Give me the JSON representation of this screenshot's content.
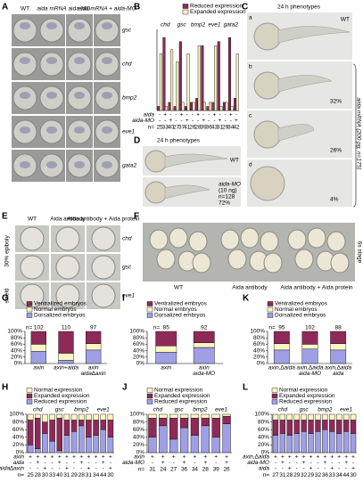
{
  "panel_letters": [
    "A",
    "B",
    "C",
    "D",
    "E",
    "F",
    "G",
    "H",
    "I",
    "J",
    "K",
    "L"
  ],
  "panel_a": {
    "columns": [
      "WT",
      "aida mRNA",
      "aida-MO",
      "aida mRNA + aida-MO"
    ],
    "rows": [
      "gsc",
      "chd",
      "bmp2",
      "eve1",
      "gata2"
    ]
  },
  "panel_c": {
    "title": "24 h phenotypes",
    "wt": "WT",
    "sub": [
      "a",
      "b",
      "c",
      "d"
    ],
    "percents": [
      "32%",
      "26%",
      "4%"
    ],
    "side": "aida mRNA (200 pg, n=175)"
  },
  "panel_d": {
    "title": "24 h phenotypes",
    "wt": "WT",
    "lines": [
      "aida-MO",
      "(10 ng)",
      "n=128",
      "72%"
    ]
  },
  "panel_e": {
    "columns": [
      "WT",
      "Aida antibody",
      "Aida antibody + Aida protein"
    ],
    "rows": [
      "chd",
      "gsc",
      "eve1"
    ],
    "stages": [
      "30% epiboly",
      "shield"
    ]
  },
  "panel_f": {
    "labels": [
      "WT",
      "Aida antibody",
      "Aida antibody + Aida protein"
    ],
    "stage": "6s stage"
  },
  "chart_data": [
    {
      "type": "grouped_bar",
      "ylim": [
        0,
        100
      ],
      "groups": [
        "chd",
        "gsc",
        "bmp2",
        "eve1",
        "gata2"
      ],
      "series": [
        {
          "name": "Reduced expression",
          "color": "#8e2a5a",
          "values": [
            5,
            90,
            10,
            5,
            85,
            5,
            10,
            15,
            80,
            5,
            10,
            85,
            10,
            90,
            15
          ]
        },
        {
          "name": "Expanded expression",
          "color": "#fdf6c3",
          "values": [
            70,
            5,
            75,
            60,
            10,
            70,
            10,
            80,
            10,
            10,
            80,
            5,
            10,
            5,
            70
          ]
        }
      ],
      "conditions": [
        {
          "name": "aida",
          "marks": [
            "-",
            "+",
            "-",
            "-",
            "+",
            "-",
            "-",
            "+",
            "-",
            "-",
            "+",
            "-",
            "-",
            "+",
            "-"
          ]
        },
        {
          "name": "aida-MO",
          "marks": [
            "-",
            "-",
            "+",
            "-",
            "-",
            "+",
            "-",
            "-",
            "+",
            "-",
            "-",
            "+",
            "-",
            "-",
            "+"
          ]
        }
      ],
      "n_label": "n=",
      "n": [
        25,
        33,
        40,
        27,
        37,
        41,
        26,
        28,
        39,
        36,
        43,
        31,
        29,
        34,
        42
      ]
    },
    {
      "type": "stacked_bar",
      "categories": [
        [
          "axin"
        ],
        [
          "axin+aida"
        ],
        [
          "axin",
          "aida∆axin"
        ]
      ],
      "ylim": [
        0,
        100
      ],
      "yticks": [
        {
          "value": 0,
          "label": "0%"
        },
        {
          "value": 20,
          "label": "20%"
        },
        {
          "value": 40,
          "label": "40%"
        },
        {
          "value": 60,
          "label": "60%"
        },
        {
          "value": 80,
          "label": "80%"
        },
        {
          "value": 100,
          "label": "100%"
        }
      ],
      "series": [
        {
          "name": "Dorsalized embryos",
          "color": "#9f9fe6",
          "values": [
            38,
            10,
            42
          ]
        },
        {
          "name": "Normal embryos",
          "color": "#fdf6c3",
          "values": [
            22,
            22,
            20
          ]
        },
        {
          "name": "Ventralized embryos",
          "color": "#8e2a5a",
          "values": [
            40,
            68,
            38
          ]
        }
      ],
      "n_label": "n=",
      "n": [
        102,
        110,
        97
      ]
    },
    {
      "type": "stacked_bar",
      "groups": [
        "chd",
        "gsc",
        "bmp2",
        "eve1"
      ],
      "ylim": [
        0,
        100
      ],
      "yticks": [
        {
          "value": 0,
          "label": "0%"
        },
        {
          "value": 20,
          "label": "20%"
        },
        {
          "value": 40,
          "label": "40%"
        },
        {
          "value": 60,
          "label": "60%"
        },
        {
          "value": 80,
          "label": "80%"
        },
        {
          "value": 100,
          "label": "100%"
        }
      ],
      "series": [
        {
          "name": "Reduced expression",
          "color": "#9f9fe6",
          "values": [
            20,
            10,
            50,
            30,
            5,
            45,
            55,
            70,
            40,
            45,
            60,
            40
          ]
        },
        {
          "name": "Expanded expression",
          "color": "#8e2a5a",
          "values": [
            65,
            80,
            30,
            55,
            85,
            40,
            30,
            15,
            45,
            40,
            25,
            45
          ]
        },
        {
          "name": "Normal expression",
          "color": "#fdf6c3",
          "values": [
            15,
            10,
            20,
            15,
            10,
            15,
            15,
            15,
            15,
            15,
            15,
            15
          ]
        }
      ],
      "conditions": [
        {
          "name": "axin",
          "marks": [
            "+",
            "+",
            "+",
            "+",
            "+",
            "+",
            "+",
            "+",
            "+",
            "+",
            "+",
            "+"
          ]
        },
        {
          "name": "aida",
          "marks": [
            "-",
            "+",
            "-",
            "-",
            "+",
            "-",
            "-",
            "+",
            "-",
            "-",
            "+",
            "-"
          ]
        },
        {
          "name": "aida∆axin",
          "marks": [
            "-",
            "-",
            "+",
            "-",
            "-",
            "+",
            "-",
            "-",
            "+",
            "-",
            "-",
            "+"
          ]
        }
      ],
      "n_label": "n=",
      "n": [
        25,
        28,
        30,
        33,
        40,
        31,
        29,
        28,
        31,
        34,
        44,
        30
      ]
    },
    {
      "type": "stacked_bar",
      "categories": [
        [
          "axin"
        ],
        [
          "axin",
          "aida-MO"
        ]
      ],
      "ylim": [
        0,
        100
      ],
      "yticks": [
        {
          "value": 0,
          "label": "0%"
        },
        {
          "value": 20,
          "label": "20%"
        },
        {
          "value": 40,
          "label": "40%"
        },
        {
          "value": 60,
          "label": "60%"
        },
        {
          "value": 80,
          "label": "80%"
        },
        {
          "value": 100,
          "label": "100%"
        }
      ],
      "series": [
        {
          "name": "Dorsalized embryos",
          "color": "#9f9fe6",
          "values": [
            35,
            50
          ]
        },
        {
          "name": "Normal embryos",
          "color": "#fdf6c3",
          "values": [
            20,
            15
          ]
        },
        {
          "name": "Ventralized embryos",
          "color": "#8e2a5a",
          "values": [
            45,
            35
          ]
        }
      ],
      "n_label": "n=",
      "n": [
        85,
        92
      ]
    },
    {
      "type": "stacked_bar",
      "groups": [
        "chd",
        "gsc",
        "bmp2",
        "eve1"
      ],
      "ylim": [
        0,
        100
      ],
      "yticks": [
        {
          "value": 0,
          "label": "0%"
        },
        {
          "value": 20,
          "label": "20%"
        },
        {
          "value": 40,
          "label": "40%"
        },
        {
          "value": 60,
          "label": "60%"
        },
        {
          "value": 80,
          "label": "80%"
        },
        {
          "value": 100,
          "label": "100%"
        }
      ],
      "series": [
        {
          "name": "Reduced expression",
          "color": "#9f9fe6",
          "values": [
            40,
            70,
            35,
            65,
            45,
            70,
            40,
            75
          ]
        },
        {
          "name": "Expanded expression",
          "color": "#8e2a5a",
          "values": [
            50,
            20,
            55,
            25,
            45,
            20,
            50,
            20
          ]
        },
        {
          "name": "Normal expression",
          "color": "#fdf6c3",
          "values": [
            10,
            10,
            10,
            10,
            10,
            10,
            10,
            5
          ]
        }
      ],
      "conditions": [
        {
          "name": "axin",
          "marks": [
            "+",
            "+",
            "+",
            "+",
            "+",
            "+",
            "+",
            "+"
          ]
        },
        {
          "name": "aida-MO",
          "marks": [
            "-",
            "+",
            "-",
            "+",
            "-",
            "+",
            "-",
            "+"
          ]
        }
      ],
      "n_label": "n=",
      "n": [
        31,
        24,
        27,
        36,
        34,
        28,
        39,
        26
      ]
    },
    {
      "type": "stacked_bar",
      "categories": [
        [
          "axin,∆aida"
        ],
        [
          "axin,∆aida",
          "aida-MO"
        ],
        [
          "axin,∆aida",
          "aida"
        ]
      ],
      "ylim": [
        0,
        100
      ],
      "yticks": [
        {
          "value": 0,
          "label": "0%"
        },
        {
          "value": 20,
          "label": "20%"
        },
        {
          "value": 40,
          "label": "40%"
        },
        {
          "value": 60,
          "label": "60%"
        },
        {
          "value": 80,
          "label": "80%"
        },
        {
          "value": 100,
          "label": "100%"
        }
      ],
      "series": [
        {
          "name": "Dorsalized embryos",
          "color": "#9f9fe6",
          "values": [
            42,
            45,
            42
          ]
        },
        {
          "name": "Normal embryos",
          "color": "#fdf6c3",
          "values": [
            20,
            15,
            20
          ]
        },
        {
          "name": "Ventralized embryos",
          "color": "#8e2a5a",
          "values": [
            38,
            40,
            38
          ]
        }
      ],
      "n_label": "n=",
      "n": [
        95,
        102,
        88
      ]
    },
    {
      "type": "stacked_bar",
      "groups": [
        "chd",
        "gsc",
        "bmp2",
        "eve1"
      ],
      "ylim": [
        0,
        100
      ],
      "yticks": [
        {
          "value": 0,
          "label": "0%"
        },
        {
          "value": 20,
          "label": "20%"
        },
        {
          "value": 40,
          "label": "40%"
        },
        {
          "value": 60,
          "label": "60%"
        },
        {
          "value": 80,
          "label": "80%"
        },
        {
          "value": 100,
          "label": "100%"
        }
      ],
      "series": [
        {
          "name": "Reduced expression",
          "color": "#9f9fe6",
          "values": [
            45,
            50,
            45,
            50,
            55,
            50,
            55,
            60,
            55,
            50,
            55,
            50
          ]
        },
        {
          "name": "Expanded expression",
          "color": "#8e2a5a",
          "values": [
            40,
            35,
            40,
            35,
            30,
            35,
            30,
            25,
            30,
            35,
            30,
            35
          ]
        },
        {
          "name": "Normal expression",
          "color": "#fdf6c3",
          "values": [
            15,
            15,
            15,
            15,
            15,
            15,
            15,
            15,
            15,
            15,
            15,
            15
          ]
        }
      ],
      "conditions": [
        {
          "name": "axin,∆aida",
          "marks": [
            "+",
            "+",
            "+",
            "+",
            "+",
            "+",
            "+",
            "+",
            "+",
            "+",
            "+",
            "+"
          ]
        },
        {
          "name": "aida-MO",
          "marks": [
            "-",
            "+",
            "-",
            "-",
            "+",
            "-",
            "-",
            "+",
            "-",
            "-",
            "+",
            "-"
          ]
        },
        {
          "name": "aida",
          "marks": [
            "-",
            "-",
            "+",
            "-",
            "-",
            "+",
            "-",
            "-",
            "+",
            "-",
            "-",
            "+"
          ]
        }
      ],
      "n_label": "n=",
      "n": [
        27,
        31,
        28,
        29,
        32,
        29,
        32,
        36,
        33,
        34,
        44,
        30
      ]
    }
  ]
}
